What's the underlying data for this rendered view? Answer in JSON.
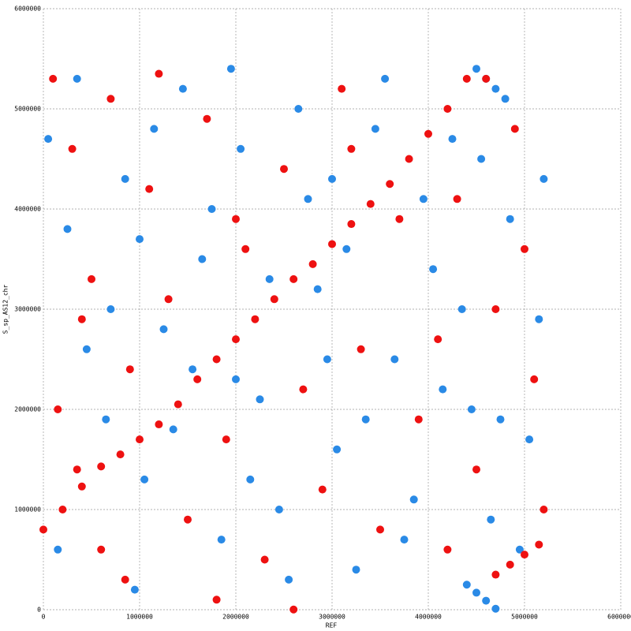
{
  "chart_data": {
    "type": "scatter",
    "x_label": "REF",
    "y_label": "S_sp_AS12_chr",
    "xlim": [
      0,
      6000000
    ],
    "ylim": [
      0,
      6000000
    ],
    "xticks": [
      0,
      1000000,
      2000000,
      3000000,
      4000000,
      5000000,
      6000000
    ],
    "yticks": [
      0,
      1000000,
      2000000,
      3000000,
      4000000,
      5000000,
      6000000
    ],
    "grid": true,
    "series": [
      {
        "color": "#2a8ae6",
        "x": [
          50000,
          250000,
          450000,
          650000,
          850000,
          1050000,
          1250000,
          1450000,
          1650000,
          1850000,
          2050000,
          2250000,
          2450000,
          2650000,
          2850000,
          3050000,
          3250000,
          3450000,
          3650000,
          3850000,
          4050000,
          4250000,
          4450000,
          4650000,
          4850000,
          5050000,
          5200000,
          5150000,
          150000,
          350000,
          700000,
          950000,
          1150000,
          1350000,
          1550000,
          1750000,
          1950000,
          2150000,
          2350000,
          2550000,
          2750000,
          2950000,
          3150000,
          3350000,
          3550000,
          3750000,
          3950000,
          4150000,
          4350000,
          4550000,
          4750000,
          4950000,
          1000000,
          3000000,
          2000000,
          4500000,
          4600000,
          4700000,
          4800000,
          4400000,
          4500000,
          4600000,
          4700000
        ],
        "values": [
          4700000,
          3800000,
          2600000,
          1900000,
          4300000,
          1300000,
          2800000,
          5200000,
          3500000,
          700000,
          4600000,
          2100000,
          1000000,
          5000000,
          3200000,
          1600000,
          400000,
          4800000,
          2500000,
          1100000,
          3400000,
          4700000,
          2000000,
          900000,
          3900000,
          1700000,
          4300000,
          2900000,
          600000,
          5300000,
          3000000,
          200000,
          4800000,
          1800000,
          2400000,
          4000000,
          5400000,
          1300000,
          3300000,
          300000,
          4100000,
          2500000,
          3600000,
          1900000,
          5300000,
          700000,
          4100000,
          2200000,
          3000000,
          4500000,
          1900000,
          600000,
          3700000,
          4300000,
          2300000,
          5400000,
          5300000,
          5200000,
          5100000,
          250000,
          170000,
          90000,
          10000
        ]
      },
      {
        "color": "#ee1111",
        "x": [
          0,
          200000,
          400000,
          600000,
          800000,
          1000000,
          1200000,
          1400000,
          1600000,
          1800000,
          2000000,
          2200000,
          2400000,
          2600000,
          2800000,
          3000000,
          3200000,
          3400000,
          3600000,
          3800000,
          4000000,
          4200000,
          4400000,
          4700000,
          4850000,
          5000000,
          5150000,
          100000,
          300000,
          500000,
          700000,
          900000,
          150000,
          350000,
          600000,
          850000,
          1100000,
          1300000,
          1500000,
          1700000,
          1900000,
          2100000,
          2300000,
          2500000,
          2700000,
          2900000,
          3100000,
          3300000,
          3500000,
          3700000,
          3900000,
          4100000,
          4300000,
          4500000,
          4700000,
          4900000,
          5100000,
          5200000,
          5000000,
          4600000,
          1800000,
          2600000,
          400000,
          1200000,
          3200000,
          4200000,
          2000000
        ],
        "values": [
          800000,
          1000000,
          1230000,
          1430000,
          1550000,
          1700000,
          1850000,
          2050000,
          2300000,
          2500000,
          2700000,
          2900000,
          3100000,
          3300000,
          3450000,
          3650000,
          3850000,
          4050000,
          4250000,
          4500000,
          4750000,
          5000000,
          5300000,
          350000,
          450000,
          550000,
          650000,
          5300000,
          4600000,
          3300000,
          5100000,
          2400000,
          2000000,
          1400000,
          600000,
          300000,
          4200000,
          3100000,
          900000,
          4900000,
          1700000,
          3600000,
          500000,
          4400000,
          2200000,
          1200000,
          5200000,
          2600000,
          800000,
          3900000,
          1900000,
          2700000,
          4100000,
          1400000,
          3000000,
          4800000,
          2300000,
          1000000,
          3600000,
          5300000,
          100000,
          2000,
          2900000,
          5350000,
          4600000,
          600000,
          3900000
        ]
      }
    ]
  }
}
